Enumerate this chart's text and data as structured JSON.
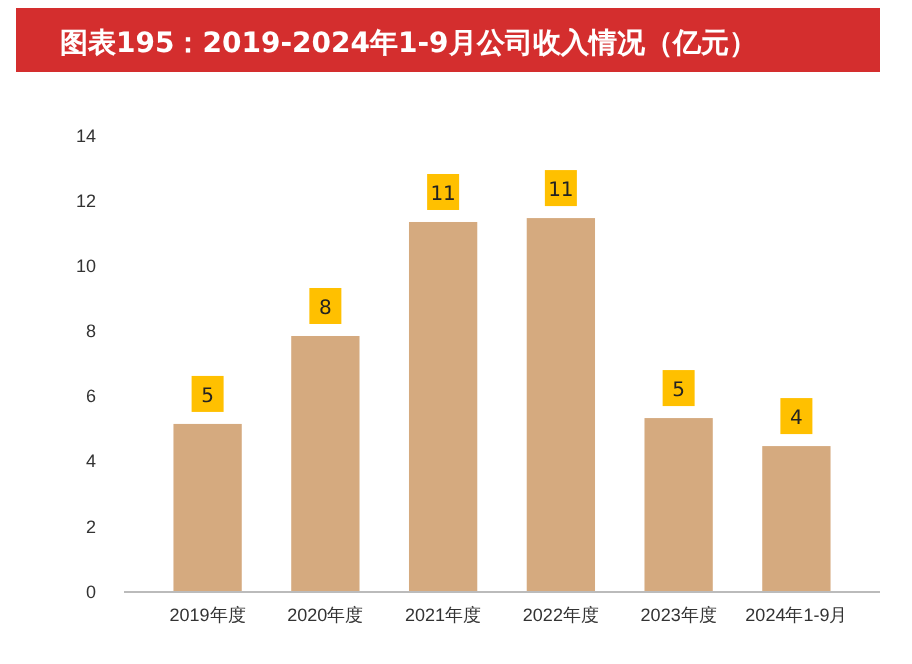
{
  "chart_data": {
    "type": "bar",
    "title": "图表195：2019-2024年1-9月公司收入情况（亿元）",
    "categories": [
      "2019年度",
      "2020年度",
      "2021年度",
      "2022年度",
      "2023年度",
      "2024年1-9月"
    ],
    "values": [
      5.16,
      7.86,
      11.36,
      11.48,
      5.34,
      4.48
    ],
    "value_labels": [
      "5",
      "8",
      "11",
      "11",
      "5",
      "4"
    ],
    "color": "#d5aa7f",
    "ylim": [
      0,
      14
    ],
    "yticks": [
      0,
      2,
      4,
      6,
      8,
      10,
      12,
      14
    ],
    "grid": false
  }
}
